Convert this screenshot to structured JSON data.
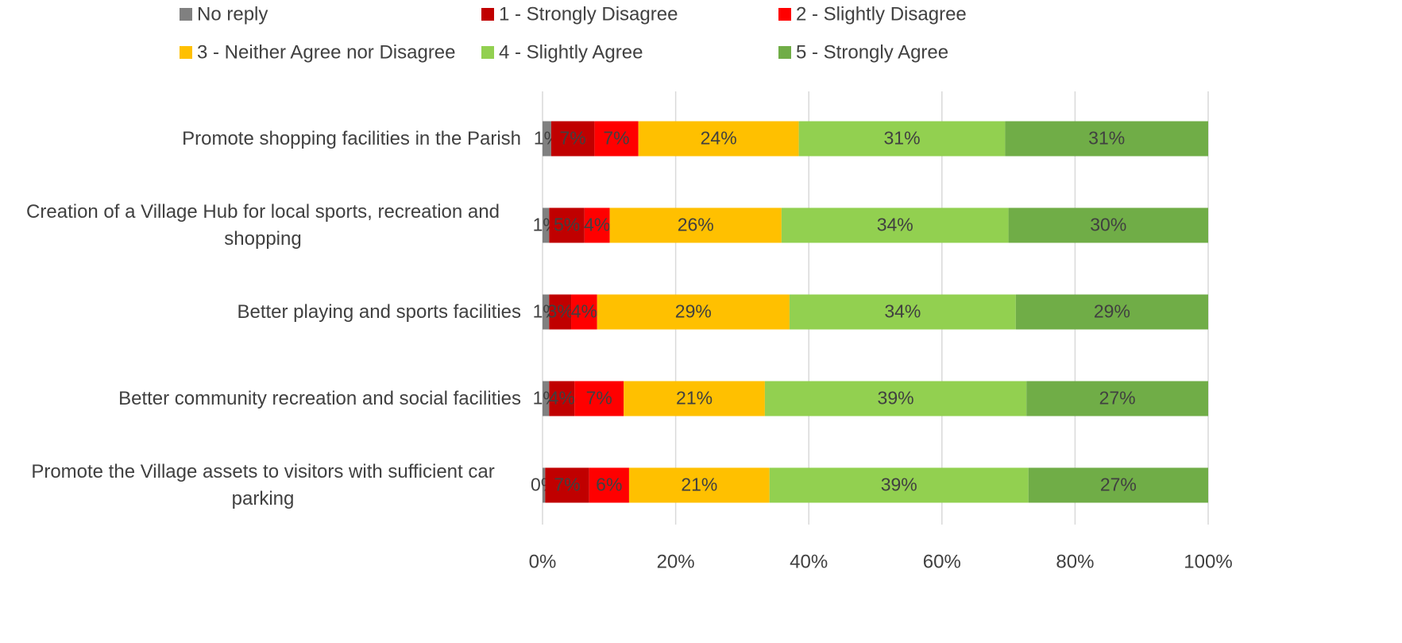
{
  "chart_data": {
    "type": "stacked-bar-horizontal",
    "categories": [
      "Promote shopping facilities in the Parish",
      "Creation of a Village Hub for local sports, recreation and shopping",
      "Better playing and sports facilities",
      "Better community recreation and social facilities",
      "Promote the Village assets to visitors with sufficient car parking"
    ],
    "series": [
      {
        "name": "No reply",
        "color": "#808080",
        "values": [
          1.3,
          1.0,
          1.0,
          1.0,
          0.4
        ],
        "value_labels": [
          "1%",
          "1%",
          "1%",
          "1%",
          "0%"
        ]
      },
      {
        "name": "1 - Strongly Disagree",
        "color": "#c00000",
        "values": [
          6.5,
          5.3,
          3.3,
          3.8,
          6.6
        ],
        "value_labels": [
          "7%",
          "5%",
          "3%",
          "4%",
          "7%"
        ]
      },
      {
        "name": "2 - Slightly Disagree",
        "color": "#ff0000",
        "values": [
          6.6,
          3.8,
          3.9,
          7.4,
          6.0
        ],
        "value_labels": [
          "7%",
          "4%",
          "4%",
          "7%",
          "6%"
        ]
      },
      {
        "name": "3 - Neither Agree nor Disagree",
        "color": "#ffc000",
        "values": [
          24.1,
          25.8,
          28.9,
          21.2,
          21.1
        ],
        "value_labels": [
          "24%",
          "26%",
          "29%",
          "21%",
          "21%"
        ]
      },
      {
        "name": "4 - Slightly Agree",
        "color": "#92d050",
        "values": [
          31.0,
          34.1,
          34.0,
          39.3,
          38.9
        ],
        "value_labels": [
          "31%",
          "34%",
          "34%",
          "39%",
          "39%"
        ]
      },
      {
        "name": "5 - Strongly Agree",
        "color": "#70ad47",
        "values": [
          30.5,
          30.0,
          28.9,
          27.3,
          27.0
        ],
        "value_labels": [
          "31%",
          "30%",
          "29%",
          "27%",
          "27%"
        ]
      }
    ],
    "xlim": [
      0,
      100
    ],
    "xticks": [
      {
        "value": 0,
        "label": "0%"
      },
      {
        "value": 20,
        "label": "20%"
      },
      {
        "value": 40,
        "label": "40%"
      },
      {
        "value": 60,
        "label": "60%"
      },
      {
        "value": 80,
        "label": "80%"
      },
      {
        "value": 100,
        "label": "100%"
      }
    ],
    "grid": true
  }
}
